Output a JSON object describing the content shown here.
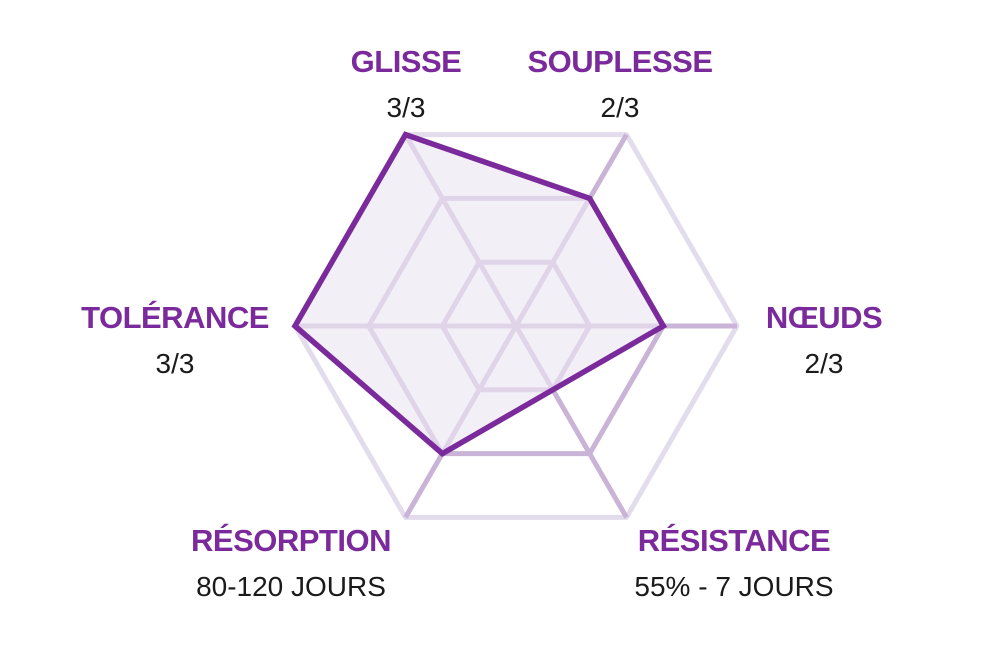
{
  "chart_data": {
    "type": "radar",
    "max": 3,
    "levels": 3,
    "colors": {
      "accent": "#7b2a9c",
      "label": "#7b2a9c",
      "value_text": "#1a1a1a",
      "outer_ring": "#e3dcec",
      "inner_ring": "#c9b3d6",
      "fill": "#ede6f3"
    },
    "axes": [
      {
        "name": "GLISSE",
        "display": "3/3",
        "value": 3
      },
      {
        "name": "SOUPLESSE",
        "display": "2/3",
        "value": 2
      },
      {
        "name": "NŒUDS",
        "display": "2/3",
        "value": 2
      },
      {
        "name": "RÉSISTANCE",
        "display": "55% - 7 JOURS",
        "value": 1
      },
      {
        "name": "RÉSORPTION",
        "display": "80-120 JOURS",
        "value": 2
      },
      {
        "name": "TOLÉRANCE",
        "display": "3/3",
        "value": 3
      }
    ]
  }
}
